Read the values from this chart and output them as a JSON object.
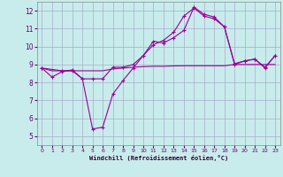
{
  "xlabel": "Windchill (Refroidissement éolien,°C)",
  "background_color": "#c8ecec",
  "grid_color": "#aaaacc",
  "line_color": "#990099",
  "xlim": [
    -0.5,
    23.5
  ],
  "ylim": [
    4.5,
    12.5
  ],
  "xticks": [
    0,
    1,
    2,
    3,
    4,
    5,
    6,
    7,
    8,
    9,
    10,
    11,
    12,
    13,
    14,
    15,
    16,
    17,
    18,
    19,
    20,
    21,
    22,
    23
  ],
  "yticks": [
    5,
    6,
    7,
    8,
    9,
    10,
    11,
    12
  ],
  "line1_x": [
    0,
    1,
    2,
    3,
    4,
    5,
    6,
    7,
    8,
    9,
    10,
    11,
    12,
    13,
    14,
    15,
    16,
    17,
    18,
    19,
    20,
    21,
    22,
    23
  ],
  "line1_y": [
    8.8,
    8.3,
    8.6,
    8.7,
    8.2,
    5.4,
    5.5,
    7.35,
    8.1,
    8.8,
    9.5,
    10.3,
    10.2,
    10.5,
    10.9,
    12.2,
    11.8,
    11.65,
    11.1,
    9.0,
    9.2,
    9.3,
    8.8,
    9.5
  ],
  "line2_x": [
    0,
    1,
    2,
    3,
    4,
    5,
    6,
    7,
    8,
    9,
    10,
    11,
    12,
    13,
    14,
    15,
    16,
    17,
    18,
    19,
    20,
    21,
    22,
    23
  ],
  "line2_y": [
    8.8,
    8.65,
    8.65,
    8.65,
    8.65,
    8.65,
    8.65,
    8.75,
    8.8,
    8.85,
    8.88,
    8.9,
    8.9,
    8.92,
    8.93,
    8.93,
    8.93,
    8.93,
    8.93,
    9.0,
    9.0,
    9.0,
    9.0,
    9.0
  ],
  "line3_x": [
    0,
    2,
    3,
    4,
    5,
    6,
    7,
    8,
    9,
    10,
    11,
    12,
    13,
    14,
    15,
    16,
    17,
    18,
    19,
    20,
    21,
    22,
    23
  ],
  "line3_y": [
    8.8,
    8.65,
    8.65,
    8.2,
    8.2,
    8.2,
    8.85,
    8.85,
    9.0,
    9.5,
    10.1,
    10.35,
    10.8,
    11.7,
    12.15,
    11.7,
    11.55,
    11.1,
    9.05,
    9.2,
    9.3,
    8.85,
    9.5
  ]
}
